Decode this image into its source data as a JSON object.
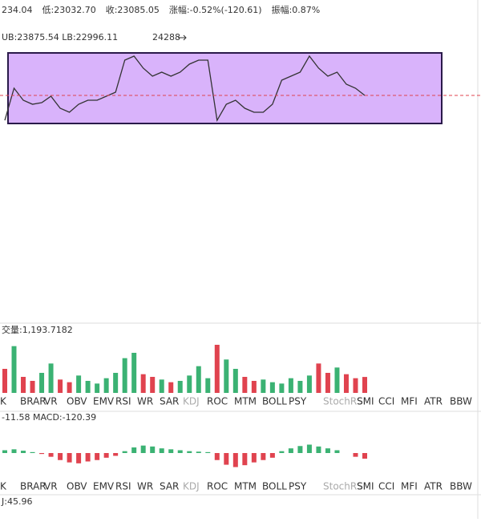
{
  "header": {
    "items": [
      "234.04",
      "低:23032.70",
      "收:23085.05",
      "涨幅:-0.52%(-120.61)",
      "振幅:0.87%"
    ]
  },
  "bands_label": "UB:23875.54  LB:22996.11",
  "peak_label": "24288",
  "price": {
    "type": "line",
    "color": "#333333",
    "ylim": [
      18200,
      24720
    ],
    "values": [
      22546,
      23242,
      22981,
      22894,
      22928,
      23068,
      22807,
      22720,
      22894,
      22981,
      22981,
      23068,
      23155,
      23851,
      23938,
      23677,
      23503,
      23590,
      23503,
      23590,
      23764,
      23851,
      23851,
      22546,
      22894,
      22981,
      22807,
      22720,
      22720,
      22894,
      23416,
      23503,
      23590,
      23938,
      23677,
      23503,
      23590,
      23329,
      23242,
      23085
    ]
  },
  "volume": {
    "type": "bar",
    "label": "交量:1,193.7182",
    "ylim": [
      0,
      4200
    ],
    "values": [
      1800,
      3500,
      1200,
      900,
      1500,
      2200,
      1000,
      800,
      1300,
      900,
      700,
      1100,
      1500,
      2600,
      3000,
      1400,
      1200,
      1000,
      800,
      900,
      1300,
      2000,
      1100,
      3600,
      2500,
      1800,
      1200,
      900,
      1000,
      800,
      700,
      1100,
      900,
      1300,
      2200,
      1500,
      1900,
      1400,
      1100,
      1193.7182
    ]
  },
  "macd": {
    "type": "bar",
    "label": "-11.58  MACD:-120.39",
    "ylim": [
      -600,
      600
    ],
    "values": [
      60,
      80,
      50,
      20,
      -20,
      -80,
      -150,
      -200,
      -220,
      -180,
      -150,
      -100,
      -60,
      40,
      120,
      160,
      140,
      100,
      80,
      60,
      40,
      30,
      20,
      -150,
      -250,
      -300,
      -260,
      -200,
      -150,
      -100,
      40,
      100,
      150,
      180,
      140,
      100,
      60,
      0,
      -80,
      -120.39
    ]
  },
  "up_color": "#3bb273",
  "down_color": "#e0434f",
  "tabs": [
    "K",
    "BRAR",
    "VR",
    "OBV",
    "EMV",
    "RSI",
    "WR",
    "SAR",
    "KDJ",
    "ROC",
    "MTM",
    "BOLL",
    "PSY",
    "StochRSI",
    "SMI",
    "CCI",
    "MFI",
    "ATR",
    "BBW"
  ],
  "inactive_tabs": [
    8,
    13
  ],
  "bottom_label": "J:45.96"
}
